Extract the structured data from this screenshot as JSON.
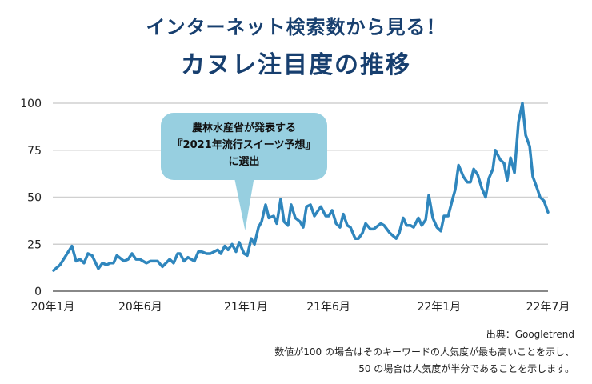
{
  "chart_data": {
    "type": "line",
    "title": "インターネット検索数から見る！",
    "subtitle": "カヌレ注目度の推移",
    "xlabel": "",
    "ylabel": "",
    "ylim": [
      0,
      100
    ],
    "xlim": [
      0,
      30
    ],
    "x_unit": "months since 2020-01",
    "yticks": [
      0,
      25,
      50,
      75,
      100
    ],
    "ytick_labels": [
      "0",
      "25",
      "50",
      "75",
      "100"
    ],
    "xticks": [
      0,
      5.3,
      11.7,
      16.7,
      23.4,
      30
    ],
    "xtick_labels": [
      "20年1月",
      "20年6月",
      "21年1月",
      "21年6月",
      "22年1月",
      "22年7月"
    ],
    "grid": true,
    "line_color": "#2f86bd",
    "series": [
      {
        "name": "カヌレ",
        "x": [
          0.05,
          0.44,
          1.16,
          1.41,
          1.65,
          1.89,
          2.13,
          2.38,
          2.76,
          3.01,
          3.25,
          3.49,
          3.68,
          3.88,
          4.31,
          4.56,
          4.8,
          5.04,
          5.28,
          5.67,
          5.91,
          6.35,
          6.64,
          7.08,
          7.32,
          7.56,
          7.71,
          7.95,
          8.19,
          8.58,
          8.82,
          9.02,
          9.31,
          9.55,
          9.99,
          10.18,
          10.42,
          10.62,
          10.86,
          11.1,
          11.29,
          11.59,
          11.78,
          12.02,
          12.22,
          12.46,
          12.65,
          12.89,
          13.09,
          13.38,
          13.57,
          13.81,
          14.01,
          14.25,
          14.44,
          14.69,
          14.98,
          15.17,
          15.37,
          15.61,
          15.85,
          16.24,
          16.53,
          16.72,
          16.92,
          17.16,
          17.4,
          17.6,
          17.84,
          18.03,
          18.32,
          18.52,
          18.76,
          18.95,
          19.24,
          19.44,
          19.87,
          20.07,
          20.41,
          20.8,
          20.99,
          21.23,
          21.43,
          21.67,
          21.86,
          22.15,
          22.35,
          22.59,
          22.78,
          23.02,
          23.27,
          23.51,
          23.7,
          23.95,
          24.19,
          24.38,
          24.58,
          24.87,
          25.11,
          25.3,
          25.5,
          25.74,
          25.98,
          26.22,
          26.42,
          26.66,
          26.81,
          27.1,
          27.34,
          27.53,
          27.73,
          27.97,
          28.21,
          28.45,
          28.65,
          28.89,
          29.08,
          29.33,
          29.52,
          29.76,
          30.0
        ],
        "values": [
          11,
          14,
          24,
          16,
          17,
          15,
          20,
          19,
          12,
          15,
          14,
          15,
          15,
          19,
          16,
          17,
          20,
          17,
          17,
          15,
          16,
          16,
          13,
          17,
          15,
          20,
          20,
          16,
          18,
          16,
          21,
          21,
          20,
          20,
          22,
          20,
          24,
          22,
          25,
          21,
          26,
          20,
          19,
          28,
          25,
          34,
          37,
          46,
          39,
          40,
          36,
          49,
          37,
          35,
          46,
          39,
          37,
          34,
          45,
          46,
          40,
          45,
          40,
          40,
          43,
          36,
          34,
          41,
          35,
          34,
          28,
          28,
          31,
          36,
          33,
          33,
          36,
          35,
          31,
          28,
          31,
          39,
          35,
          35,
          34,
          39,
          35,
          38,
          51,
          39,
          34,
          32,
          40,
          40,
          48,
          54,
          67,
          61,
          58,
          58,
          65,
          62,
          55,
          50,
          60,
          65,
          75,
          70,
          68,
          59,
          71,
          63,
          90,
          100,
          83,
          77,
          61,
          55,
          50,
          48,
          42
        ]
      }
    ],
    "annotations": [
      {
        "at_x": 11.6,
        "lines": [
          "農林水産省が発表する",
          "『2021年流行スイーツ予想』",
          "に選出"
        ],
        "color": "#97cfe0"
      }
    ]
  },
  "footer": {
    "source": "出典：Googletrend",
    "note1": "数値が100 の場合はそのキーワードの人気度が最も高いことを示し、",
    "note2": "50 の場合は人気度が半分であることを示します。"
  }
}
